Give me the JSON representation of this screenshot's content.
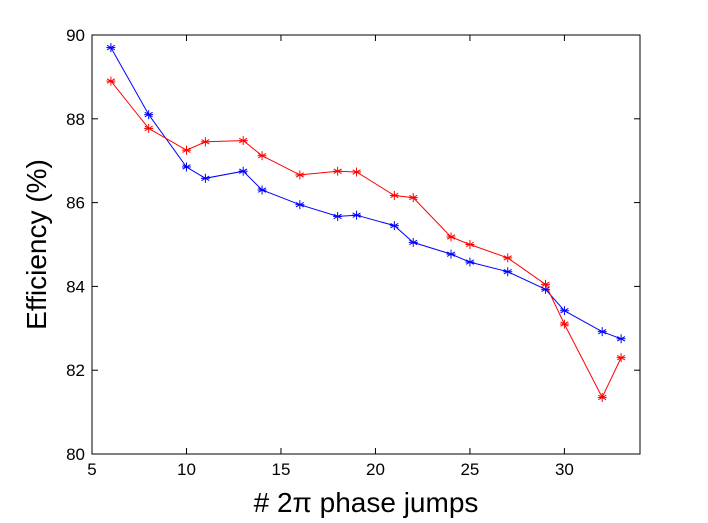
{
  "chart_data": {
    "type": "line",
    "title": "",
    "xlabel": "# 2π phase jumps",
    "ylabel": "Efficiency (%)",
    "xlim": [
      5,
      34
    ],
    "ylim": [
      80,
      90
    ],
    "xticks": [
      5,
      10,
      15,
      20,
      25,
      30
    ],
    "yticks": [
      80,
      82,
      84,
      86,
      88,
      90
    ],
    "grid": false,
    "legend": "none",
    "series": [
      {
        "name": "blue",
        "color": "#0000ff",
        "marker": "*",
        "x": [
          6,
          8,
          10,
          11,
          13,
          14,
          16,
          18,
          19,
          21,
          22,
          24,
          25,
          27,
          29,
          30,
          32,
          33
        ],
        "y": [
          89.7,
          88.1,
          86.85,
          86.58,
          86.75,
          86.3,
          85.95,
          85.67,
          85.7,
          85.45,
          85.05,
          84.77,
          84.58,
          84.35,
          83.93,
          83.42,
          82.92,
          82.75
        ]
      },
      {
        "name": "red",
        "color": "#ff0000",
        "marker": "*",
        "x": [
          6,
          8,
          10,
          11,
          13,
          14,
          16,
          18,
          19,
          21,
          22,
          24,
          25,
          27,
          29,
          30,
          32,
          33
        ],
        "y": [
          88.9,
          87.77,
          87.25,
          87.45,
          87.48,
          87.12,
          86.66,
          86.75,
          86.73,
          86.17,
          86.12,
          85.18,
          85.0,
          84.68,
          84.05,
          83.1,
          81.35,
          82.3
        ]
      }
    ]
  }
}
